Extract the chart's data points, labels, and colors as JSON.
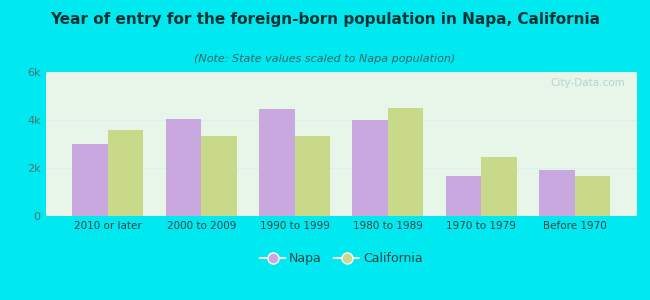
{
  "categories": [
    "2010 or later",
    "2000 to 2009",
    "1990 to 1999",
    "1980 to 1989",
    "1970 to 1979",
    "Before 1970"
  ],
  "napa_values": [
    3000,
    4050,
    4450,
    4000,
    1650,
    1900
  ],
  "california_values": [
    3600,
    3350,
    3350,
    4500,
    2450,
    1650
  ],
  "napa_color": "#c9a8e0",
  "california_color": "#c8d98a",
  "title": "Year of entry for the foreign-born population in Napa, California",
  "subtitle": "(Note: State values scaled to Napa population)",
  "title_fontsize": 11,
  "subtitle_fontsize": 8,
  "title_color": "#003333",
  "subtitle_color": "#336666",
  "background_outer": "#00e8f0",
  "background_inner_top": "#f0faf0",
  "background_inner": "#e8f5e9",
  "ylim": [
    0,
    6000
  ],
  "yticks": [
    0,
    2000,
    4000,
    6000
  ],
  "ytick_labels": [
    "0",
    "2k",
    "4k",
    "6k"
  ],
  "legend_napa": "Napa",
  "legend_california": "California",
  "bar_width": 0.38,
  "watermark": "City-Data.com"
}
